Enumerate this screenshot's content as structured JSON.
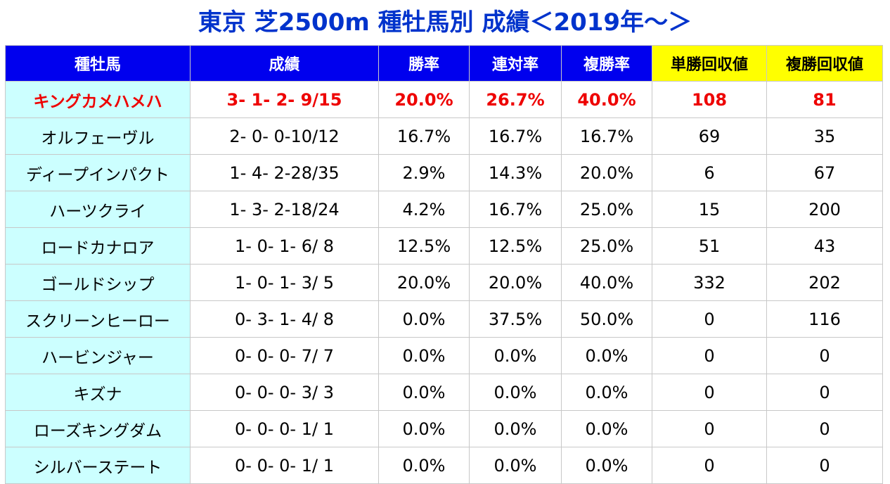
{
  "title": "東京 芝2500m 種牡馬別 成績＜2019年～＞",
  "colors": {
    "title": "#0033cc",
    "header_bg": "#0000ee",
    "header_yellow": "#ffff00",
    "name_column_bg": "#ccffff",
    "highlight_text": "#ee0000"
  },
  "headers": [
    "種牡馬",
    "成績",
    "勝率",
    "連対率",
    "複勝率",
    "単勝回収値",
    "複勝回収値"
  ],
  "rows": [
    [
      "キングカメハメハ",
      "3- 1- 2- 9/15",
      "20.0%",
      "26.7%",
      "40.0%",
      "108",
      "81"
    ],
    [
      "オルフェーヴル",
      "2- 0- 0-10/12",
      "16.7%",
      "16.7%",
      "16.7%",
      "69",
      "35"
    ],
    [
      "ディープインパクト",
      "1- 4- 2-28/35",
      "2.9%",
      "14.3%",
      "20.0%",
      "6",
      "67"
    ],
    [
      "ハーツクライ",
      "1- 3- 2-18/24",
      "4.2%",
      "16.7%",
      "25.0%",
      "15",
      "200"
    ],
    [
      "ロードカナロア",
      "1- 0- 1- 6/ 8",
      "12.5%",
      "12.5%",
      "25.0%",
      "51",
      "43"
    ],
    [
      "ゴールドシップ",
      "1- 0- 1- 3/ 5",
      "20.0%",
      "20.0%",
      "40.0%",
      "332",
      "202"
    ],
    [
      "スクリーンヒーロー",
      "0- 3- 1- 4/ 8",
      "0.0%",
      "37.5%",
      "50.0%",
      "0",
      "116"
    ],
    [
      "ハービンジャー",
      "0- 0- 0- 7/ 7",
      "0.0%",
      "0.0%",
      "0.0%",
      "0",
      "0"
    ],
    [
      "キズナ",
      "0- 0- 0- 3/ 3",
      "0.0%",
      "0.0%",
      "0.0%",
      "0",
      "0"
    ],
    [
      "ローズキングダム",
      "0- 0- 0- 1/ 1",
      "0.0%",
      "0.0%",
      "0.0%",
      "0",
      "0"
    ],
    [
      "シルバーステート",
      "0- 0- 0- 1/ 1",
      "0.0%",
      "0.0%",
      "0.0%",
      "0",
      "0"
    ]
  ]
}
